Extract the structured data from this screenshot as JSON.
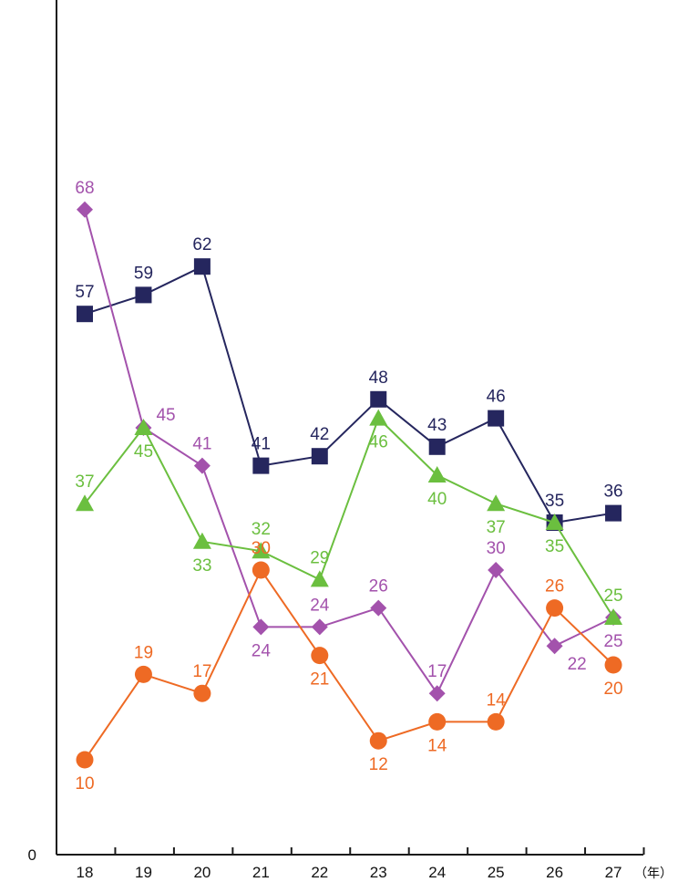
{
  "chart_data": {
    "type": "line",
    "x": [
      "18",
      "19",
      "20",
      "21",
      "22",
      "23",
      "24",
      "25",
      "26",
      "27"
    ],
    "x_unit": "（年）",
    "y_zero_label": "0",
    "ylim": [
      0,
      100
    ],
    "grid": false,
    "legend": "none",
    "series": [
      {
        "color": "#25265e",
        "marker": "square",
        "values": [
          57,
          59,
          62,
          41,
          42,
          48,
          43,
          46,
          35,
          36
        ],
        "label_pos": [
          "above",
          "above",
          "above",
          "above",
          "above",
          "above",
          "above",
          "above",
          "above",
          "above"
        ]
      },
      {
        "color": "#a352ac",
        "marker": "diamond",
        "values": [
          68,
          45,
          41,
          24,
          24,
          26,
          17,
          30,
          22,
          25
        ],
        "label_pos": [
          "above",
          "right",
          "above",
          "below",
          "above",
          "above",
          "above",
          "above",
          "below-right",
          "below"
        ]
      },
      {
        "color": "#6bbf3f",
        "marker": "triangle",
        "values": [
          37,
          45,
          33,
          32,
          29,
          46,
          40,
          37,
          35,
          25
        ],
        "label_pos": [
          "above",
          "below",
          "below",
          "above",
          "above",
          "below",
          "below",
          "below",
          "below",
          "above"
        ]
      },
      {
        "color": "#ee6a24",
        "marker": "circle",
        "values": [
          10,
          19,
          17,
          30,
          21,
          12,
          14,
          14,
          26,
          20
        ],
        "label_pos": [
          "below",
          "above",
          "above",
          "above",
          "below",
          "below",
          "below",
          "above",
          "above",
          "below"
        ]
      }
    ]
  }
}
